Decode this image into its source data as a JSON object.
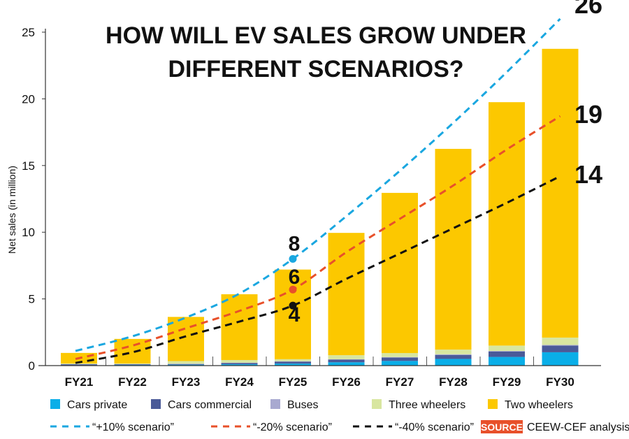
{
  "chart_data": {
    "type": "bar",
    "title_lines": [
      "HOW WILL EV SALES GROW UNDER",
      "DIFFERENT SCENARIOS?"
    ],
    "ylabel": "Net sales (in million)",
    "ylim": [
      0,
      25
    ],
    "yticks": [
      "0",
      "5",
      "10",
      "15",
      "20",
      "25"
    ],
    "categories": [
      "FY21",
      "FY22",
      "FY23",
      "FY24",
      "FY25",
      "FY26",
      "FY27",
      "FY28",
      "FY29",
      "FY30"
    ],
    "stacked_series": [
      {
        "name": "Cars private",
        "color": "#0aaee8",
        "values": [
          0.03,
          0.05,
          0.07,
          0.1,
          0.15,
          0.25,
          0.35,
          0.5,
          0.65,
          1.0
        ]
      },
      {
        "name": "Cars commercial",
        "color": "#4a5a98",
        "values": [
          0.07,
          0.05,
          0.05,
          0.1,
          0.15,
          0.2,
          0.25,
          0.3,
          0.4,
          0.5
        ]
      },
      {
        "name": "Buses",
        "color": "#a8a9d0",
        "values": [
          0.01,
          0.01,
          0.02,
          0.02,
          0.03,
          0.03,
          0.04,
          0.05,
          0.05,
          0.05
        ]
      },
      {
        "name": "Three wheelers",
        "color": "#d8e6a0",
        "values": [
          0.05,
          0.05,
          0.2,
          0.2,
          0.15,
          0.3,
          0.3,
          0.35,
          0.4,
          0.55
        ]
      },
      {
        "name": "Two wheelers",
        "color": "#fcc800",
        "values": [
          0.79,
          1.84,
          3.31,
          4.93,
          6.72,
          9.17,
          12.01,
          15.05,
          18.25,
          21.65
        ]
      }
    ],
    "line_series": [
      {
        "name": "“+10% scenario”",
        "color": "#1aa7e0",
        "values": [
          1.1,
          2.2,
          3.6,
          5.4,
          8.0,
          11.2,
          14.6,
          18.2,
          22.0,
          26.0
        ],
        "end_label": "26",
        "fy25_label": "8"
      },
      {
        "name": "“-20% scenario”",
        "color": "#e8502a",
        "values": [
          0.5,
          1.5,
          2.8,
          4.1,
          5.7,
          8.5,
          11.0,
          13.5,
          16.2,
          18.7
        ],
        "end_label": "19",
        "fy25_label": "6"
      },
      {
        "name": "“-40% scenario”",
        "color": "#111111",
        "values": [
          0.2,
          1.0,
          2.2,
          3.3,
          4.5,
          6.5,
          8.4,
          10.3,
          12.2,
          14.2
        ],
        "end_label": "14",
        "fy25_label": "4"
      }
    ],
    "legend_placement": "bottom",
    "grid": false
  },
  "source": {
    "badge": "SOURCE",
    "text": "CEEW-CEF analysis",
    "color": "#e8502a"
  }
}
